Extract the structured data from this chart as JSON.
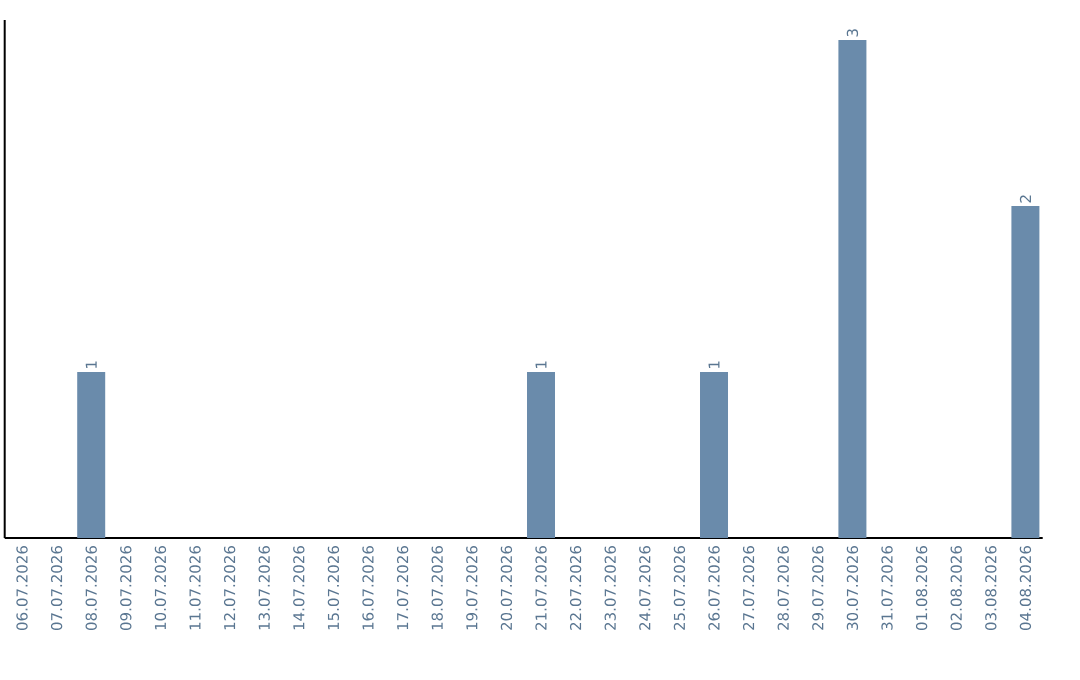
{
  "chart_data": {
    "type": "bar",
    "categories": [
      "06.07.2026",
      "07.07.2026",
      "08.07.2026",
      "09.07.2026",
      "10.07.2026",
      "11.07.2026",
      "12.07.2026",
      "13.07.2026",
      "14.07.2026",
      "15.07.2026",
      "16.07.2026",
      "17.07.2026",
      "18.07.2026",
      "19.07.2026",
      "20.07.2026",
      "21.07.2026",
      "22.07.2026",
      "23.07.2026",
      "24.07.2026",
      "25.07.2026",
      "26.07.2026",
      "27.07.2026",
      "28.07.2026",
      "29.07.2026",
      "30.07.2026",
      "31.07.2026",
      "01.08.2026",
      "02.08.2026",
      "03.08.2026",
      "04.08.2026"
    ],
    "values": [
      0,
      0,
      1,
      0,
      0,
      0,
      0,
      0,
      0,
      0,
      0,
      0,
      0,
      0,
      0,
      1,
      0,
      0,
      0,
      0,
      1,
      0,
      0,
      0,
      3,
      0,
      0,
      0,
      0,
      2
    ],
    "value_labels": [
      null,
      null,
      "1",
      null,
      null,
      null,
      null,
      null,
      null,
      null,
      null,
      null,
      null,
      null,
      null,
      "1",
      null,
      null,
      null,
      null,
      "1",
      null,
      null,
      null,
      "3",
      null,
      null,
      null,
      null,
      "2"
    ],
    "color": "#6a8bab",
    "ylim": [
      0,
      3.12
    ],
    "tick_labels": "x"
  }
}
